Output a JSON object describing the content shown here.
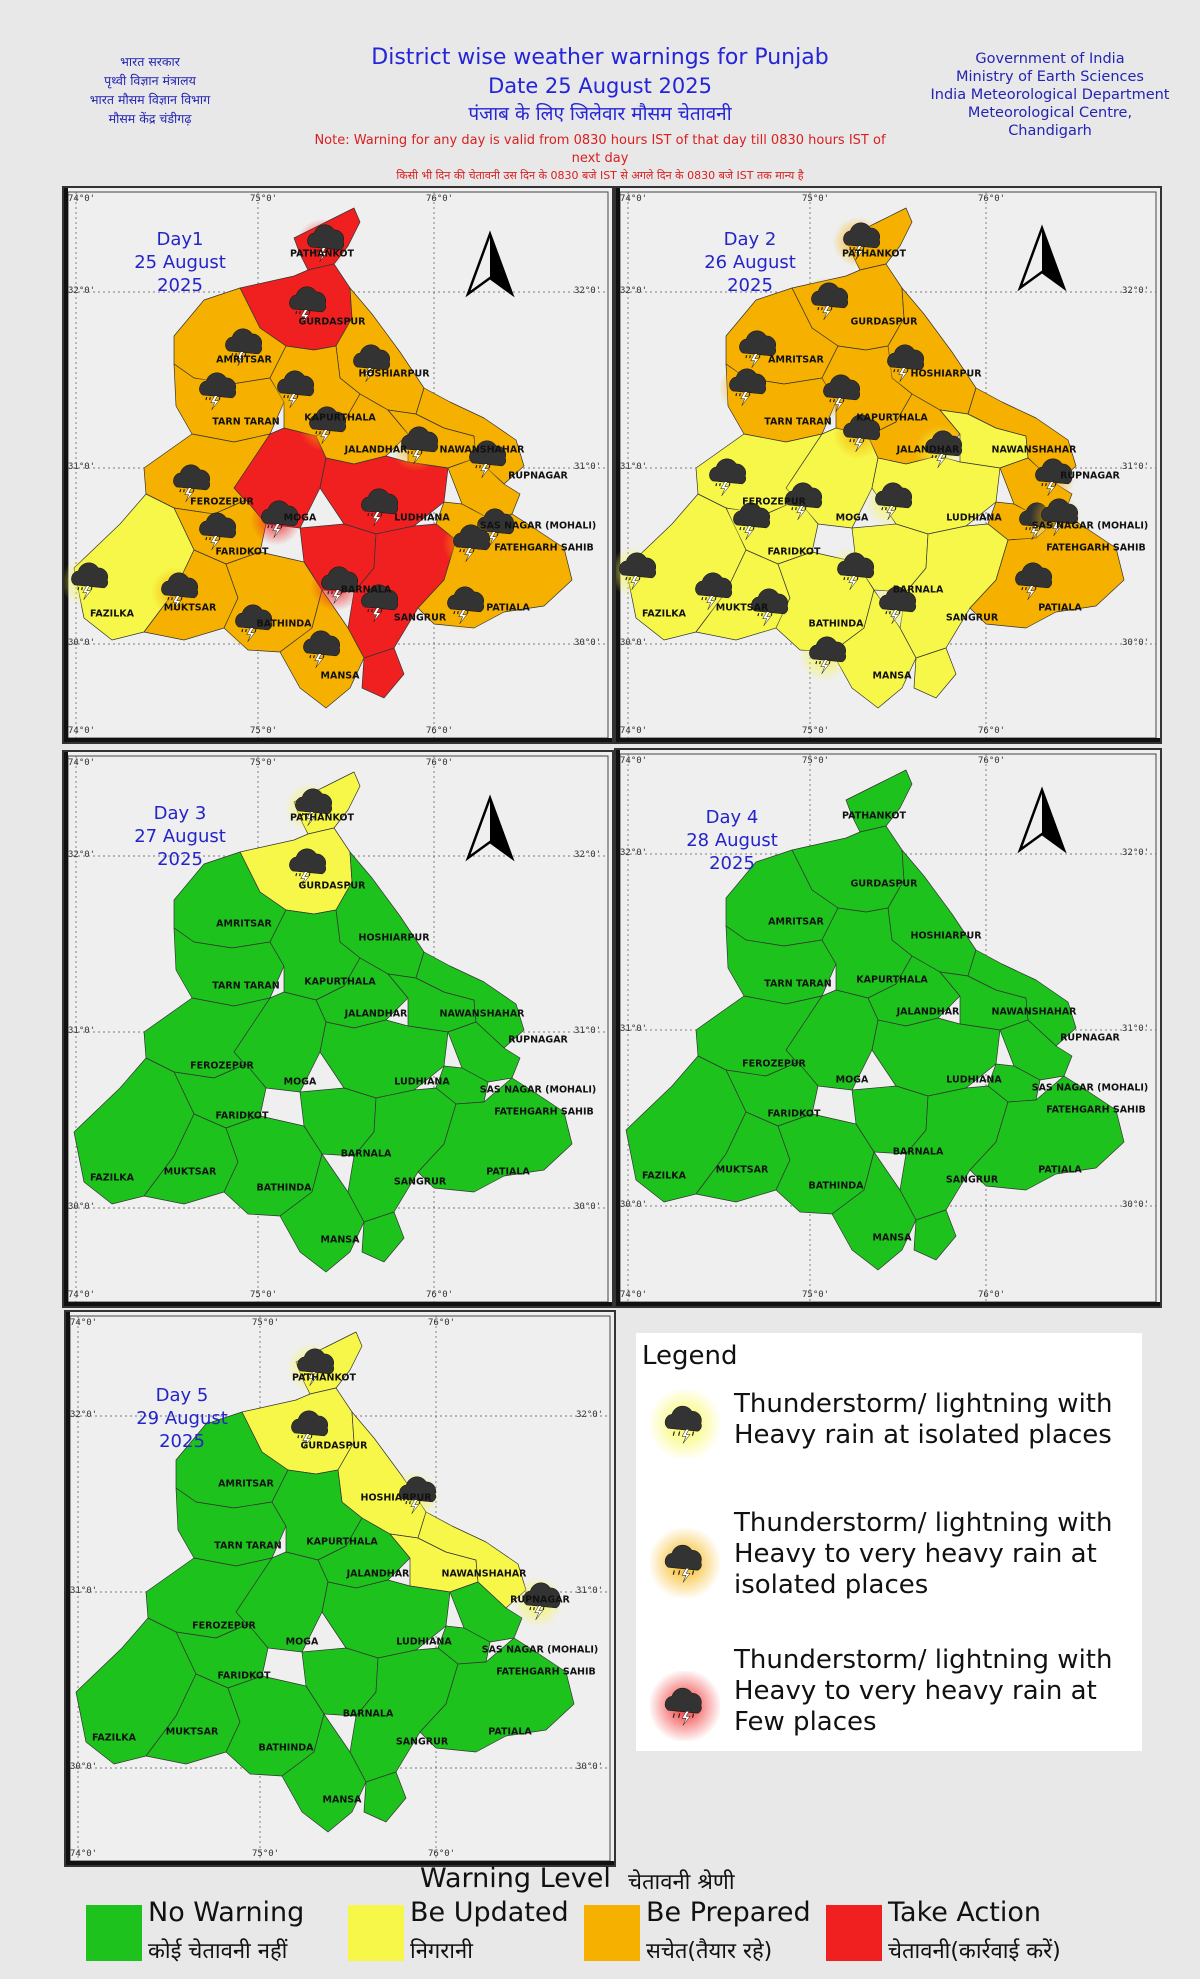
{
  "header": {
    "left_lines": [
      "भारत सरकार",
      "पृथ्वी विज्ञान मंत्रालय",
      "भारत मौसम विज्ञान विभाग",
      "मौसम केंद्र चंडीगढ़"
    ],
    "right_lines": [
      "Government of India",
      "Ministry of Earth Sciences",
      "India Meteorological Department",
      "Meteorological Centre,",
      "Chandigarh"
    ],
    "title": "District wise weather warnings for Punjab",
    "date": "Date 25 August 2025",
    "title_hindi": "पंजाब के लिए जिलेवार मौसम चेतावनी",
    "note": "Note: Warning for any day is valid from 0830 hours IST of that day till 0830 hours IST of next day",
    "note_hindi": "किसी भी दिन की चेतावनी उस दिन के 0830 बजे IST से अगले दिन के 0830 बजे IST तक मान्य है"
  },
  "ticks": {
    "lon": [
      "74°0'",
      "75°0'",
      "76°0'"
    ],
    "lat": [
      "32°0'",
      "31°0'",
      "30°0'"
    ]
  },
  "colors": {
    "no_warning": "#1dc21d",
    "be_updated": "#f7f74a",
    "be_prepared": "#f5b000",
    "take_action": "#f02020"
  },
  "panels": [
    {
      "day": "Day1",
      "date": "25 August",
      "year": "2025"
    },
    {
      "day": "Day 2",
      "date": "26 August",
      "year": "2025"
    },
    {
      "day": "Day 3",
      "date": "27 August",
      "year": "2025"
    },
    {
      "day": "Day 4",
      "date": "28 August",
      "year": "2025"
    },
    {
      "day": "Day 5",
      "date": "29 August",
      "year": "2025"
    }
  ],
  "districts": [
    "PATHANKOT",
    "GURDASPUR",
    "AMRITSAR",
    "HOSHIARPUR",
    "TARN TARAN",
    "KAPURTHALA",
    "JALANDHAR",
    "NAWANSHAHAR",
    "RUPNAGAR",
    "FEROZEPUR",
    "MOGA",
    "LUDHIANA",
    "SAS NAGAR (MOHALI)",
    "FATEHGARH SAHIB",
    "FARIDKOT",
    "FAZILKA",
    "MUKTSAR",
    "BARNALA",
    "BATHINDA",
    "SANGRUR",
    "PATIALA",
    "MANSA"
  ],
  "legend": {
    "title": "Legend",
    "items": [
      {
        "text": "Thunderstorm/ lightning with\nHeavy rain at isolated places",
        "glow": "#f7f74a"
      },
      {
        "text": "Thunderstorm/ lightning with\nHeavy to very heavy rain  at\n isolated places",
        "glow": "#f5b000"
      },
      {
        "text": "Thunderstorm/ lightning with\nHeavy to very heavy rain  at\n Few places",
        "glow": "#f02020"
      }
    ]
  },
  "warning_level": {
    "title": "Warning Level",
    "title_hindi": "चेतावनी श्रेणी",
    "items": [
      {
        "en": "No Warning",
        "hi": "कोई चेतावनी नहीं",
        "color": "#1dc21d"
      },
      {
        "en": "Be Updated",
        "hi": "निगरानी",
        "color": "#f7f74a"
      },
      {
        "en": "Be Prepared",
        "hi": "सचेत(तैयार रहे)",
        "color": "#f5b000"
      },
      {
        "en": "Take Action",
        "hi": "चेतावनी(कार्रवाई करें)",
        "color": "#f02020"
      }
    ]
  },
  "map_data": {
    "warnings": {
      "day1": {
        "PATHANKOT": "take_action",
        "GURDASPUR": "take_action",
        "AMRITSAR": "be_prepared",
        "TARN TARAN": "be_prepared",
        "HOSHIARPUR": "be_prepared",
        "KAPURTHALA": "be_prepared",
        "JALANDHAR": "be_prepared",
        "NAWANSHAHAR": "be_prepared",
        "RUPNAGAR": "be_prepared",
        "FEROZEPUR": "be_prepared",
        "MOGA": "take_action",
        "LUDHIANA": "take_action",
        "BARNALA": "take_action",
        "SANGRUR": "take_action",
        "SAS NAGAR (MOHALI)": "be_prepared",
        "FATEHGARH SAHIB": "be_prepared",
        "PATIALA": "be_prepared",
        "FARIDKOT": "be_prepared",
        "FAZILKA": "be_updated",
        "MUKTSAR": "be_prepared",
        "BATHINDA": "be_prepared",
        "MANSA": "be_prepared"
      },
      "day2": {
        "PATHANKOT": "be_prepared",
        "GURDASPUR": "be_prepared",
        "AMRITSAR": "be_prepared",
        "TARN TARAN": "be_prepared",
        "HOSHIARPUR": "be_prepared",
        "KAPURTHALA": "be_prepared",
        "JALANDHAR": "be_prepared",
        "NAWANSHAHAR": "be_updated",
        "RUPNAGAR": "be_prepared",
        "SAS NAGAR (MOHALI)": "be_prepared",
        "FATEHGARH SAHIB": "be_prepared",
        "PATIALA": "be_prepared",
        "FEROZEPUR": "be_updated",
        "MOGA": "be_updated",
        "LUDHIANA": "be_updated",
        "FARIDKOT": "be_updated",
        "FAZILKA": "be_updated",
        "MUKTSAR": "be_updated",
        "BARNALA": "be_updated",
        "BATHINDA": "be_updated",
        "SANGRUR": "be_updated",
        "MANSA": "be_updated"
      },
      "day3": {
        "PATHANKOT": "be_updated",
        "GURDASPUR": "be_updated",
        "others": "no_warning"
      },
      "day4": {
        "all": "no_warning"
      },
      "day5": {
        "PATHANKOT": "be_updated",
        "GURDASPUR": "be_updated",
        "HOSHIARPUR": "be_updated",
        "NAWANSHAHAR": "be_updated",
        "RUPNAGAR": "be_updated",
        "others": "no_warning"
      }
    }
  }
}
